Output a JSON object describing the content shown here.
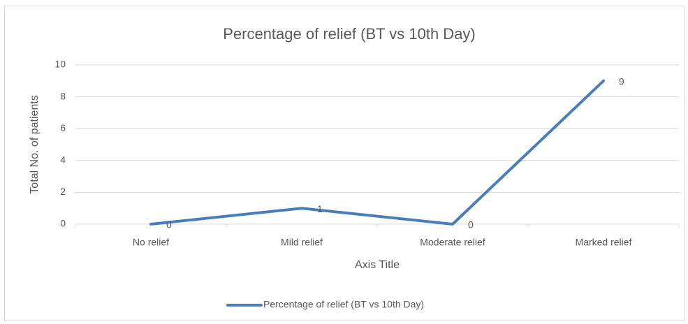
{
  "chart_data": {
    "type": "line",
    "title": "Percentage of relief (BT vs 10th Day)",
    "x_label": "Axis Title",
    "y_label": "Total No. of patients",
    "categories": [
      "No relief",
      "Mild relief",
      "Moderate relief",
      "Marked relief"
    ],
    "series": [
      {
        "name": "Percentage of relief (BT vs 10th Day)",
        "color": "#4a7ebb",
        "values": [
          0,
          1,
          0,
          9
        ]
      }
    ],
    "ylim": [
      0,
      10
    ],
    "yticks": [
      0,
      2,
      4,
      6,
      8,
      10
    ],
    "grid": true,
    "data_labels": true,
    "legend": "bottom"
  }
}
